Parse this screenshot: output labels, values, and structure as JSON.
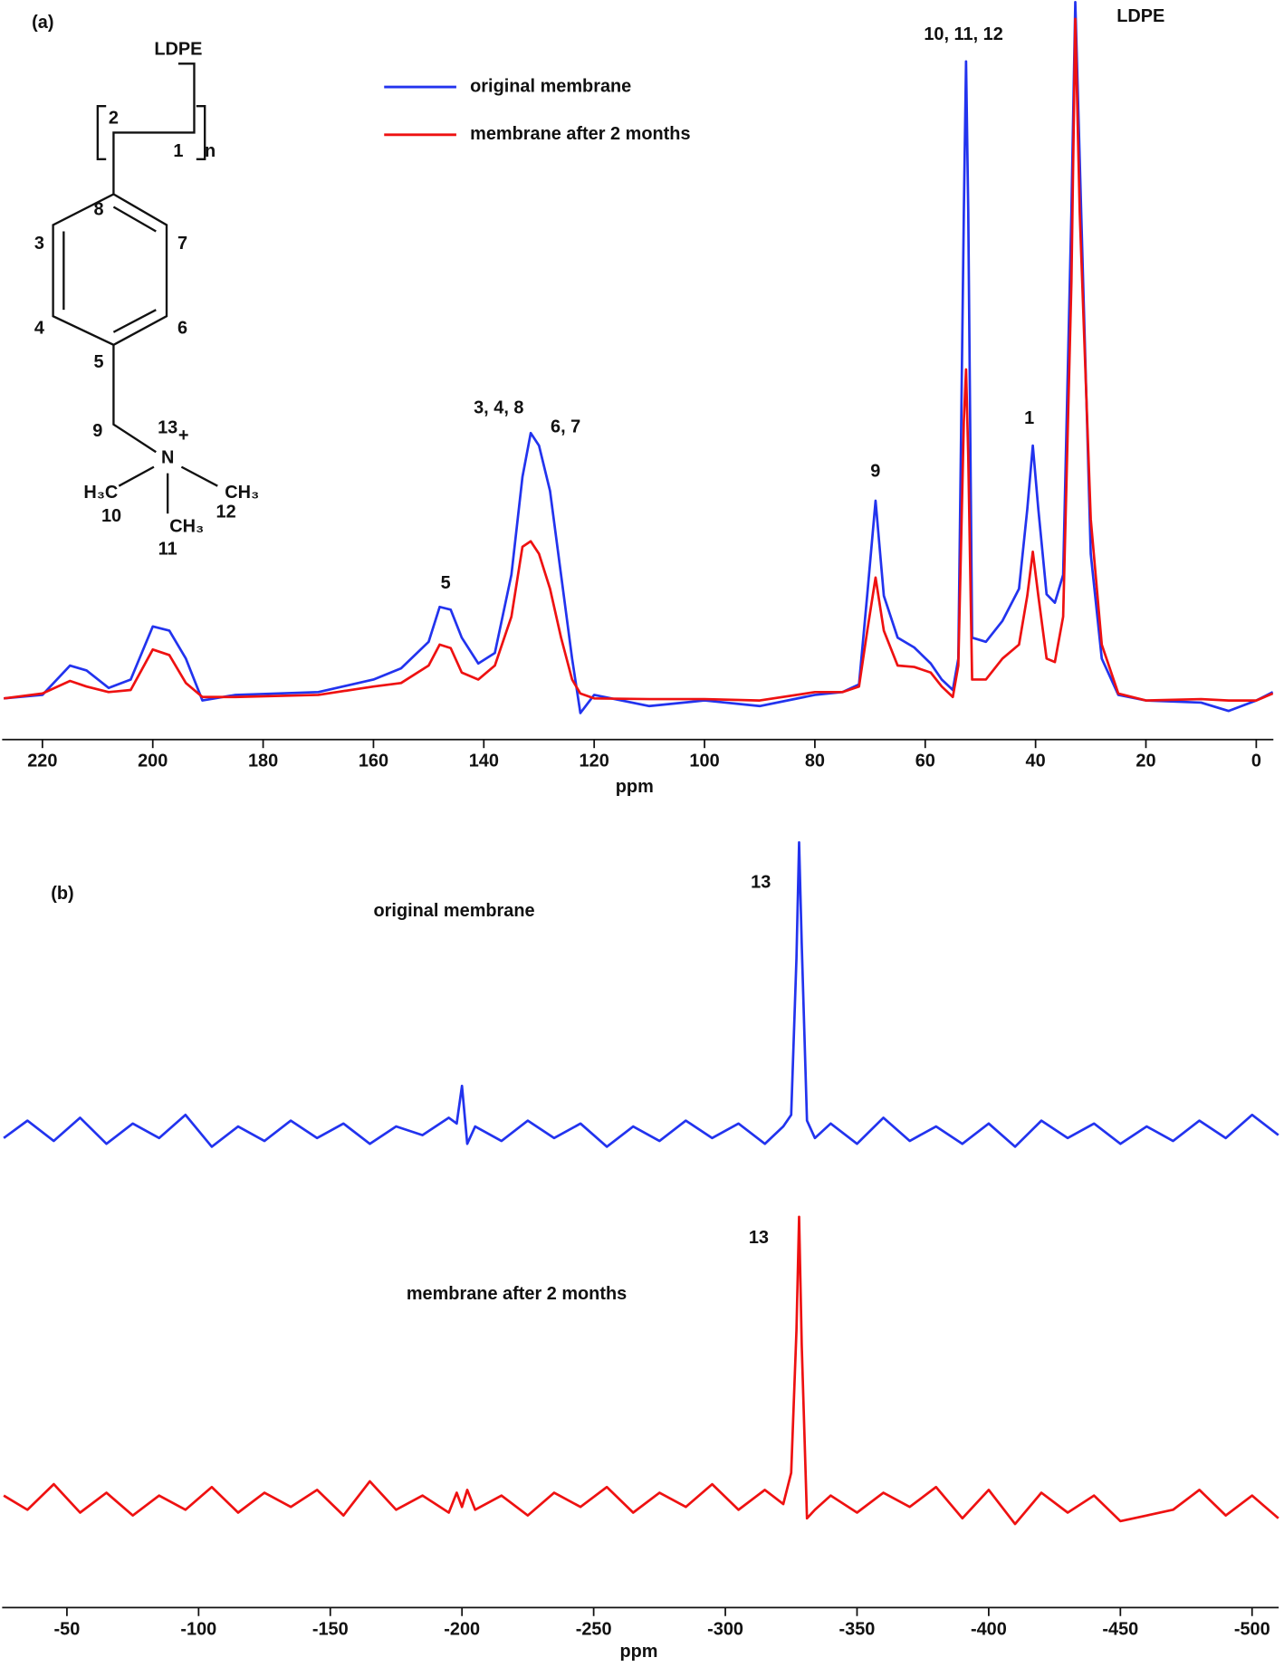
{
  "chart_data": [
    {
      "type": "line",
      "title": "(a)",
      "x_label": "ppm",
      "legend": true,
      "x": [
        227,
        220,
        215,
        212,
        208,
        204,
        200,
        197,
        194,
        191,
        185,
        170,
        160,
        155,
        150,
        148,
        146,
        144,
        141,
        138,
        135,
        133,
        131.5,
        130,
        128,
        126,
        124,
        122.5,
        120,
        110,
        100,
        90,
        80,
        75,
        72,
        70.5,
        69,
        67.5,
        65,
        62,
        59,
        57,
        55,
        54,
        53,
        52.6,
        52.2,
        51.5,
        49,
        46,
        43,
        41.5,
        40.5,
        39.5,
        38,
        36.5,
        35,
        33.5,
        32.8,
        32,
        30,
        28,
        25,
        20,
        10,
        5,
        0,
        -3
      ],
      "series": [
        {
          "name": "original membrane",
          "color": "#2233ee",
          "values": [
            0.3,
            0.8,
            5,
            4.3,
            1.8,
            3,
            10.6,
            10,
            6,
            0,
            0.8,
            1.2,
            3,
            4.6,
            8.4,
            13.4,
            13,
            9,
            5.3,
            6.8,
            18,
            32,
            38.3,
            36.5,
            30,
            18,
            6,
            -1.8,
            0.8,
            -0.8,
            0,
            -0.8,
            0.8,
            1.2,
            2.3,
            15.2,
            28.6,
            15,
            9,
            7.6,
            5.3,
            3,
            1.5,
            6,
            70,
            91.5,
            70,
            9,
            8.4,
            11.4,
            16,
            27.4,
            36.5,
            27.4,
            15.2,
            14,
            18,
            70,
            100,
            77.5,
            21,
            6,
            0.8,
            0,
            -0.3,
            -1.5,
            0,
            1.2
          ]
        },
        {
          "name": "membrane after 2 months",
          "color": "#ee1111",
          "values": [
            0.3,
            1,
            2.8,
            2,
            1.2,
            1.5,
            7.3,
            6.5,
            2.5,
            0.5,
            0.5,
            0.8,
            2,
            2.5,
            5,
            8,
            7.5,
            4,
            3,
            5,
            12,
            22,
            22.8,
            21,
            16,
            9,
            3,
            1,
            0.3,
            0.2,
            0.2,
            0,
            1.2,
            1.2,
            2,
            10,
            17.6,
            10,
            5,
            4.8,
            4,
            2,
            0.5,
            5,
            40,
            47.4,
            35,
            3,
            3,
            6,
            8,
            15,
            21.3,
            15,
            6,
            5.5,
            12,
            60,
            97.6,
            70,
            26,
            8,
            1,
            0,
            0.2,
            0,
            0,
            1
          ]
        }
      ],
      "xlim": [
        227.3,
        -3.1
      ],
      "xticks": [
        220,
        200,
        180,
        160,
        140,
        120,
        100,
        80,
        60,
        40,
        20,
        0
      ],
      "ylim": [
        -5.6,
        100.3
      ],
      "annotations": [
        "10, 11, 12",
        "LDPE",
        "1",
        "9",
        "3, 4, 8",
        "6, 7",
        "5"
      ],
      "structure_labels": [
        "LDPE",
        "2",
        "1",
        "n",
        "8",
        "3",
        "7",
        "4",
        "6",
        "5",
        "9",
        "13",
        "+",
        "N",
        "H₃C",
        "10",
        "CH₃",
        "12",
        "CH₃",
        "11"
      ]
    },
    {
      "type": "line",
      "title": "(b)",
      "x_label": "ppm",
      "layout": "stacked",
      "x": [
        -26,
        -35,
        -45,
        -55,
        -65,
        -75,
        -85,
        -95,
        -105,
        -115,
        -125,
        -135,
        -145,
        -155,
        -165,
        -175,
        -185,
        -195,
        -198,
        -200,
        -202,
        -205,
        -215,
        -225,
        -235,
        -245,
        -255,
        -265,
        -275,
        -285,
        -295,
        -305,
        -315,
        -322,
        -325,
        -327,
        -328,
        -329,
        -331,
        -334,
        -340,
        -350,
        -360,
        -370,
        -380,
        -390,
        -400,
        -410,
        -420,
        -430,
        -440,
        -450,
        -460,
        -470,
        -480,
        -490,
        -500,
        -510
      ],
      "series": [
        {
          "name": "original membrane",
          "color": "#2233ee",
          "values": [
            -2,
            4,
            -3,
            5,
            -4,
            3,
            -2,
            6,
            -5,
            2,
            -3,
            4,
            -2,
            3,
            -4,
            2,
            -1,
            5,
            3,
            16,
            -4,
            2,
            -3,
            4,
            -2,
            3,
            -5,
            2,
            -3,
            4,
            -2,
            3,
            -4,
            2,
            6,
            60,
            100,
            65,
            4,
            -2,
            3,
            -4,
            5,
            -3,
            2,
            -4,
            3,
            -5,
            4,
            -2,
            3,
            -4,
            2,
            -3,
            4,
            -2,
            6,
            -1
          ]
        },
        {
          "name": "membrane after 2 months",
          "color": "#ee1111",
          "values": [
            2,
            -3,
            6,
            -4,
            3,
            -5,
            2,
            -3,
            5,
            -4,
            3,
            -2,
            4,
            -5,
            7,
            -3,
            2,
            -4,
            3,
            -2,
            4,
            -3,
            2,
            -5,
            3,
            -2,
            5,
            -4,
            3,
            -2,
            6,
            -3,
            4,
            -1,
            10,
            60,
            100,
            55,
            -6,
            -3,
            2,
            -4,
            3,
            -2,
            5,
            -6,
            4,
            -8,
            3,
            -4,
            2,
            -7,
            -5,
            -3,
            4,
            -5,
            2,
            -6
          ]
        }
      ],
      "xlim": [
        -25.4,
        -510.1
      ],
      "xticks": [
        -50,
        -100,
        -150,
        -200,
        -250,
        -300,
        -350,
        -400,
        -450,
        -500
      ],
      "ylim": [
        -15,
        104
      ],
      "annotations": [
        "13",
        "13"
      ]
    }
  ]
}
